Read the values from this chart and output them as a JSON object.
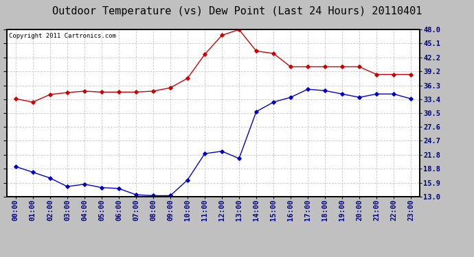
{
  "title": "Outdoor Temperature (vs) Dew Point (Last 24 Hours) 20110401",
  "copyright": "Copyright 2011 Cartronics.com",
  "x_labels": [
    "00:00",
    "01:00",
    "02:00",
    "03:00",
    "04:00",
    "05:00",
    "06:00",
    "07:00",
    "08:00",
    "09:00",
    "10:00",
    "11:00",
    "12:00",
    "13:00",
    "14:00",
    "15:00",
    "16:00",
    "17:00",
    "18:00",
    "19:00",
    "20:00",
    "21:00",
    "22:00",
    "23:00"
  ],
  "temp_data": [
    33.5,
    32.8,
    34.4,
    34.8,
    35.1,
    34.9,
    34.9,
    34.9,
    35.1,
    35.8,
    37.8,
    42.8,
    46.8,
    48.0,
    43.5,
    43.0,
    40.2,
    40.2,
    40.2,
    40.2,
    40.2,
    38.6,
    38.6,
    38.6
  ],
  "dew_data": [
    19.3,
    18.1,
    16.9,
    15.1,
    15.6,
    14.9,
    14.7,
    13.4,
    13.2,
    13.2,
    16.5,
    22.0,
    22.5,
    21.0,
    30.8,
    32.8,
    33.8,
    35.5,
    35.2,
    34.5,
    33.8,
    34.5,
    34.5,
    33.5
  ],
  "temp_color": "#cc0000",
  "dew_color": "#0000cc",
  "bg_color": "#c0c0c0",
  "plot_bg_color": "#ffffff",
  "grid_color": "#c8c8c8",
  "yticks": [
    13.0,
    15.9,
    18.8,
    21.8,
    24.7,
    27.6,
    30.5,
    33.4,
    36.3,
    39.2,
    42.2,
    45.1,
    48.0
  ],
  "ylim": [
    13.0,
    48.0
  ],
  "title_fontsize": 11,
  "copyright_fontsize": 6.5,
  "tick_label_fontsize": 7.5,
  "tick_label_color": "#000080"
}
